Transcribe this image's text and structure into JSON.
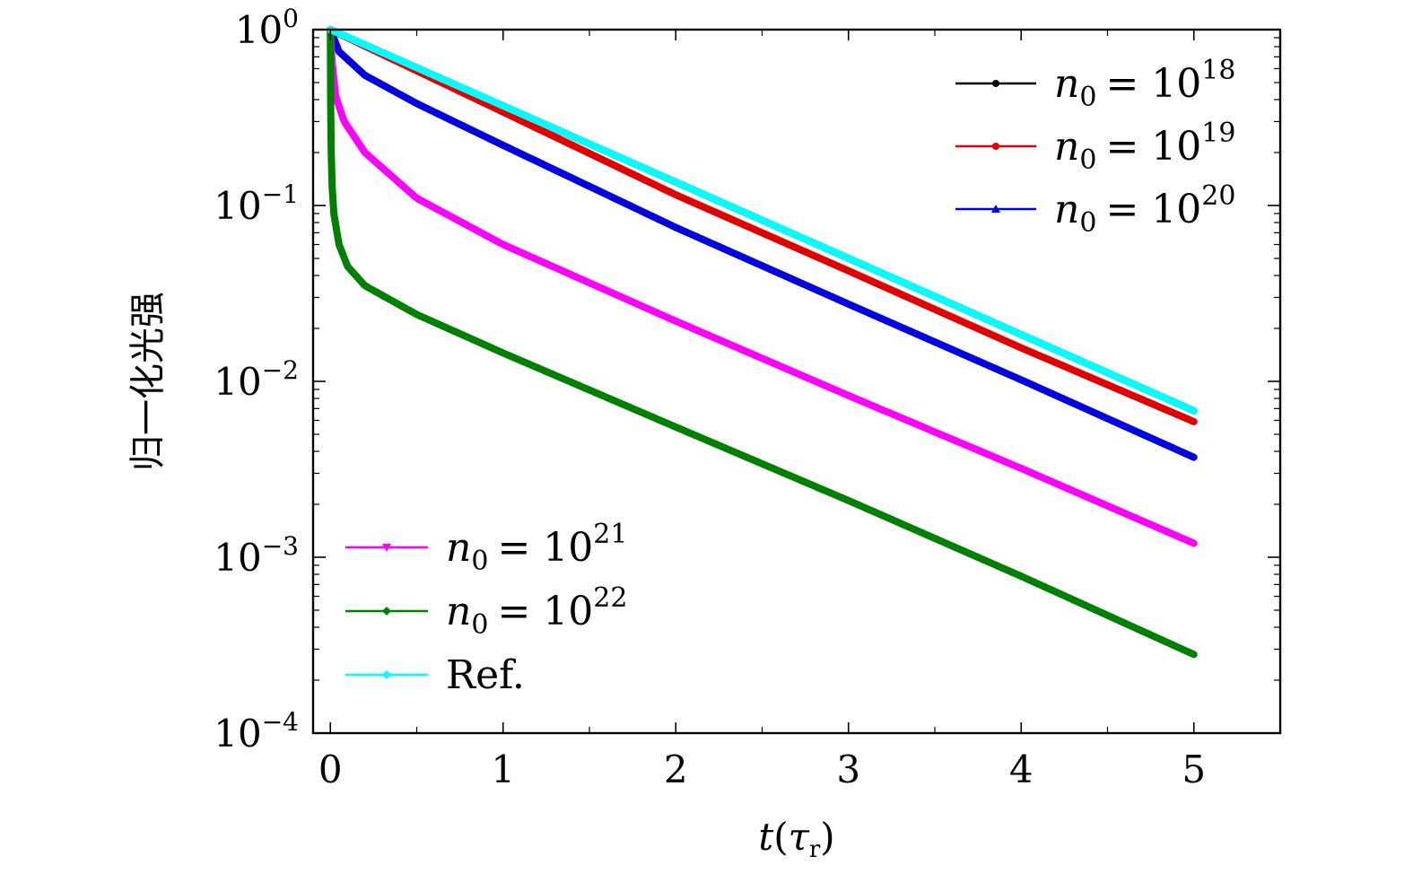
{
  "chart_data": {
    "type": "line",
    "title": "",
    "xlabel_main": "t",
    "xlabel_sub": "τ",
    "xlabel_subsub": "r",
    "ylabel": "归一化光强",
    "x_range": [
      -0.1,
      5.5
    ],
    "y_range": [
      0.0001,
      1
    ],
    "y_scale": "log",
    "grid": false,
    "x_ticks": [
      0,
      1,
      2,
      3,
      4,
      5
    ],
    "x_tick_labels": [
      "0",
      "1",
      "2",
      "3",
      "4",
      "5"
    ],
    "y_ticks": [
      1,
      0.1,
      0.01,
      0.001,
      0.0001
    ],
    "y_tick_labels": [
      {
        "base": "10",
        "exp": "0"
      },
      {
        "base": "10",
        "exp": "−1"
      },
      {
        "base": "10",
        "exp": "−2"
      },
      {
        "base": "10",
        "exp": "−3"
      },
      {
        "base": "10",
        "exp": "−4"
      }
    ],
    "legend_top_right": [
      {
        "var": "n",
        "sub": "0",
        "eq": "= 10",
        "exp": "18",
        "color": "#000000",
        "marker": "circle"
      },
      {
        "var": "n",
        "sub": "0",
        "eq": "= 10",
        "exp": "19",
        "color": "#e00000",
        "marker": "circle"
      },
      {
        "var": "n",
        "sub": "0",
        "eq": "= 10",
        "exp": "20",
        "color": "#0000e0",
        "marker": "triangle"
      }
    ],
    "legend_bottom_left": [
      {
        "var": "n",
        "sub": "0",
        "eq": "= 10",
        "exp": "21",
        "color": "#ff00ff",
        "marker": "triangle-down"
      },
      {
        "var": "n",
        "sub": "0",
        "eq": "= 10",
        "exp": "22",
        "color": "#008000",
        "marker": "diamond"
      },
      {
        "text": "Ref.",
        "color": "#00ffff",
        "marker": "diamond"
      }
    ],
    "series": [
      {
        "name": "n0 = 10^18",
        "color": "#000000",
        "x": [
          0,
          5
        ],
        "y": [
          1.0,
          0.0068
        ]
      },
      {
        "name": "n0 = 10^19",
        "color": "#e00000",
        "x": [
          0,
          1,
          2,
          3,
          4,
          5
        ],
        "y": [
          1.0,
          0.34,
          0.115,
          0.0425,
          0.0155,
          0.0059
        ]
      },
      {
        "name": "n0 = 10^20",
        "color": "#0000e0",
        "x": [
          0,
          0.05,
          0.2,
          0.5,
          1,
          2,
          3,
          4,
          5
        ],
        "y": [
          1.0,
          0.75,
          0.55,
          0.38,
          0.22,
          0.075,
          0.0275,
          0.0102,
          0.0037
        ]
      },
      {
        "name": "n0 = 10^21",
        "color": "#ff00ff",
        "x": [
          0,
          0.01,
          0.03,
          0.08,
          0.2,
          0.5,
          1,
          2,
          3,
          4,
          5
        ],
        "y": [
          1.0,
          0.65,
          0.42,
          0.3,
          0.2,
          0.11,
          0.06,
          0.022,
          0.0083,
          0.0032,
          0.0012
        ]
      },
      {
        "name": "n0 = 10^22",
        "color": "#008000",
        "x": [
          0,
          0.002,
          0.005,
          0.01,
          0.02,
          0.05,
          0.1,
          0.2,
          0.5,
          1,
          2,
          3,
          4,
          5
        ],
        "y": [
          1.0,
          0.35,
          0.2,
          0.13,
          0.09,
          0.06,
          0.045,
          0.035,
          0.024,
          0.0145,
          0.0055,
          0.0021,
          0.00078,
          0.00028
        ]
      },
      {
        "name": "Ref.",
        "color": "#00ffff",
        "x": [
          0,
          5
        ],
        "y": [
          1.0,
          0.0068
        ]
      }
    ]
  }
}
